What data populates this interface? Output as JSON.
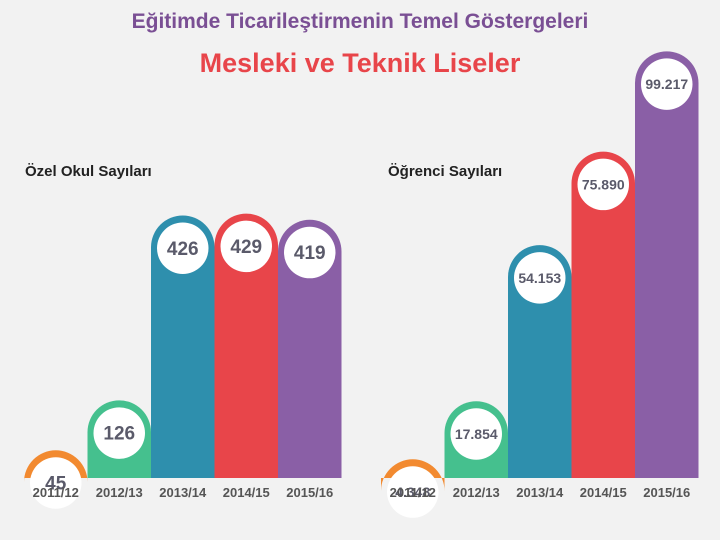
{
  "header": {
    "title": "Eğitimde Ticarileştirmenin Temel Göstergeleri",
    "subtitle": "Mesleki ve Teknik Liseler"
  },
  "colors": [
    "#f28a30",
    "#45c08e",
    "#2e8fad",
    "#e8454a",
    "#8a5fa6"
  ],
  "chart_data": [
    {
      "type": "bar",
      "title": "Özel Okul Sayıları",
      "categories": [
        "2011/12",
        "2012/13",
        "2013/14",
        "2014/15",
        "2015/16"
      ],
      "values": [
        45,
        126,
        426,
        429,
        419
      ],
      "value_labels": [
        "45",
        "126",
        "426",
        "429",
        "419"
      ],
      "ylim": [
        0,
        430
      ],
      "grid": false
    },
    {
      "type": "bar",
      "title": "Öğrenci Sayıları",
      "categories": [
        "2011/12",
        "2012/13",
        "2013/14",
        "2014/15",
        "2015/16"
      ],
      "values": [
        4348,
        17854,
        54153,
        75890,
        99217
      ],
      "value_labels": [
        "4.348",
        "17.854",
        "54.153",
        "75.890",
        "99.217"
      ],
      "ylim": [
        0,
        100000
      ],
      "grid": false
    }
  ]
}
